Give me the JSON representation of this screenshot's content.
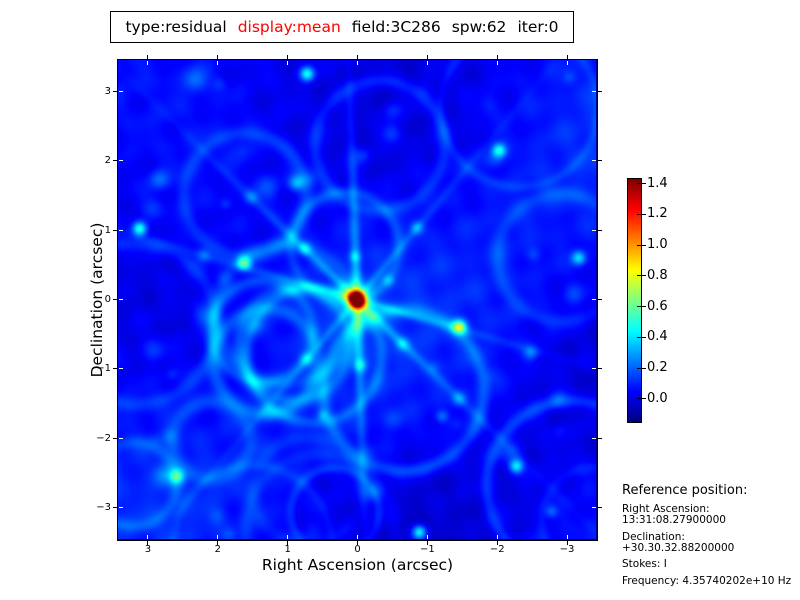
{
  "title_box": {
    "segments": [
      {
        "text": "type:residual",
        "color": "#000000"
      },
      {
        "text": "display:mean",
        "color": "#ff0000"
      },
      {
        "text": "field:3C286",
        "color": "#000000"
      },
      {
        "text": "spw:62",
        "color": "#000000"
      },
      {
        "text": "iter:0",
        "color": "#000000"
      }
    ]
  },
  "reference": {
    "heading": "Reference position:",
    "lines": [
      "Right Ascension: 13:31:08.27900000",
      "Declination: +30.30.32.88200000",
      "Stokes: I",
      "Frequency: 4.35740202e+10 Hz"
    ]
  },
  "chart_data": {
    "type": "heatmap",
    "title": "type:residual display:mean field:3C286 spw:62 iter:0",
    "xlabel": "Right Ascension (arcsec)",
    "ylabel": "Declination (arcsec)",
    "x_range": [
      3.45,
      -3.45
    ],
    "y_range": [
      -3.45,
      3.45
    ],
    "xticks": [
      3,
      2,
      1,
      0,
      -1,
      -2,
      -3
    ],
    "xtick_labels": [
      "3",
      "2",
      "1",
      "0",
      "−1",
      "−2",
      "−3"
    ],
    "yticks": [
      3,
      2,
      1,
      0,
      -1,
      -2,
      -3
    ],
    "ytick_labels": [
      "3",
      "2",
      "1",
      "0",
      "−1",
      "−2",
      "−3"
    ],
    "grid": false,
    "colormap": "jet",
    "colorbar": {
      "position": "right",
      "vmin": -0.15,
      "vmax": 1.43,
      "ticks": [
        1.4,
        1.2,
        1.0,
        0.8,
        0.6,
        0.4,
        0.2,
        0.0
      ],
      "tick_labels": [
        "1.4",
        "1.2",
        "1.0",
        "0.8",
        "0.6",
        "0.4",
        "0.2",
        "0.0"
      ]
    },
    "background_level": 0.05,
    "peak": {
      "x": 0.0,
      "y": 0.0,
      "value": 1.4,
      "description": "central point-source residual of 3C286"
    },
    "notable_points": [
      {
        "x": 3.14,
        "y": 1.02,
        "value": 0.5
      },
      {
        "x": 1.63,
        "y": 0.52,
        "value": 0.45
      },
      {
        "x": -1.48,
        "y": -0.39,
        "value": 0.55
      },
      {
        "x": 0.72,
        "y": 3.25,
        "value": 0.45
      },
      {
        "x": -2.05,
        "y": 2.15,
        "value": 0.4
      },
      {
        "x": -0.9,
        "y": -3.35,
        "value": 0.45
      },
      {
        "x": -2.3,
        "y": -2.4,
        "value": 0.4
      },
      {
        "x": 2.6,
        "y": -2.55,
        "value": 0.35
      },
      {
        "x": -3.2,
        "y": 0.6,
        "value": 0.35
      }
    ]
  }
}
